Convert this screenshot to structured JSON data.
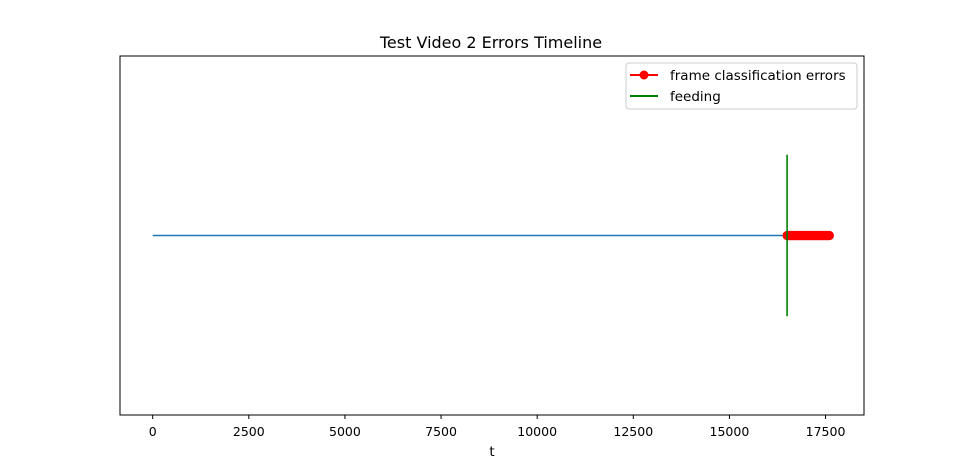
{
  "chart_data": {
    "type": "line",
    "title": "Test Video 2 Errors Timeline",
    "xlabel": "t",
    "ylabel": "",
    "xlim": [
      -850,
      18500
    ],
    "ylim": [
      0,
      1
    ],
    "x_ticks": [
      0,
      2500,
      5000,
      7500,
      10000,
      12500,
      15000,
      17500
    ],
    "y_ticks_visible": false,
    "grid": false,
    "legend_position": "top-right",
    "series": [
      {
        "name": "",
        "kind": "timeline",
        "color": "#1f77b4",
        "x": [
          0,
          17600
        ],
        "y": [
          0.5,
          0.5
        ]
      },
      {
        "name": "frame classification errors",
        "kind": "markers",
        "color": "#ff0000",
        "x_start": 16500,
        "x_end": 17600,
        "y": 0.5
      },
      {
        "name": "feeding",
        "kind": "vline",
        "color": "#008000",
        "x": 16500,
        "y_range": [
          0.275,
          0.725
        ]
      }
    ]
  }
}
